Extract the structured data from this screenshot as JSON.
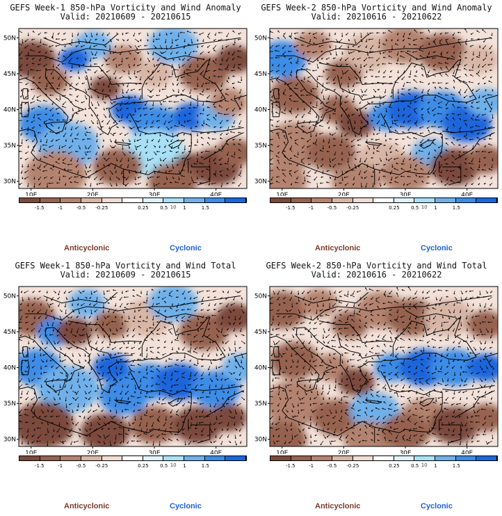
{
  "panels": [
    {
      "title_line1": "GEFS Week-1 850-hPa Vorticity and Wind Anomaly",
      "title_line2": "Valid: 20210609 - 20210615"
    },
    {
      "title_line1": "GEFS Week-2 850-hPa Vorticity and Wind Anomaly",
      "title_line2": "Valid: 20210616 - 20210622"
    },
    {
      "title_line1": "GEFS Week-1 850-hPa Vorticity and Wind Total",
      "title_line2": "Valid: 20210609 - 20210615"
    },
    {
      "title_line1": "GEFS Week-2 850-hPa Vorticity and Wind Total",
      "title_line2": "Valid: 20210616 - 20210622"
    }
  ],
  "map": {
    "lat_ticks": [
      "50N",
      "45N",
      "40N",
      "35N",
      "30N"
    ],
    "lon_ticks": [
      "10E",
      "20E",
      "30E",
      "40E"
    ]
  },
  "colorbar": {
    "labels": [
      "-1.5",
      "-1",
      "-0.5",
      "-0.25",
      "0.25",
      "0.5",
      "1",
      "1.5"
    ],
    "exponent": "10",
    "colors": [
      "#7b4a3c",
      "#966250",
      "#b4836f",
      "#d8b6a6",
      "#f0dcd2",
      "#ffffff",
      "#dff3fb",
      "#a9e0f5",
      "#6fb0ea",
      "#3c8ce6",
      "#1a66dc"
    ]
  },
  "legend": {
    "anticyclonic": "Anticyclonic",
    "cyclonic": "Cyclonic"
  },
  "colors": {
    "anticyclonic": "#7a3a2a",
    "cyclonic": "#1d5fd8"
  }
}
